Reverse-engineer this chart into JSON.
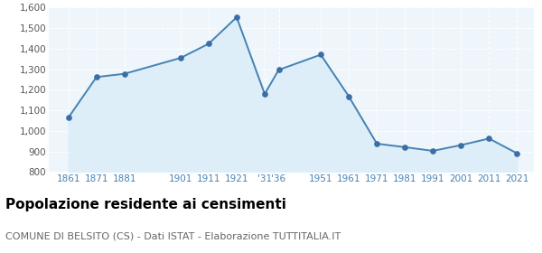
{
  "years": [
    1861,
    1871,
    1881,
    1901,
    1911,
    1921,
    1931,
    1936,
    1951,
    1961,
    1971,
    1981,
    1991,
    2001,
    2011,
    2021
  ],
  "values": [
    1065,
    1262,
    1278,
    1355,
    1424,
    1553,
    1180,
    1297,
    1371,
    1168,
    938,
    921,
    903,
    931,
    963,
    891
  ],
  "line_color": "#4682b4",
  "fill_color": "#ddeef8",
  "marker_color": "#3a6ea5",
  "ylim": [
    800,
    1600
  ],
  "yticks": [
    800,
    900,
    1000,
    1100,
    1200,
    1300,
    1400,
    1500,
    1600
  ],
  "xtick_positions": [
    1861,
    1871,
    1881,
    1901,
    1911,
    1921,
    1931,
    1936,
    1951,
    1961,
    1971,
    1981,
    1991,
    2001,
    2011,
    2021
  ],
  "xtick_labels": [
    "1861",
    "1871",
    "1881",
    "1901",
    "1911",
    "1921",
    "'31",
    "'36",
    "1951",
    "1961",
    "1971",
    "1981",
    "1991",
    "2001",
    "2011",
    "2021"
  ],
  "xlabel_color": "#4682b4",
  "ylabel_color": "#555555",
  "title": "Popolazione residente ai censimenti",
  "subtitle": "COMUNE DI BELSITO (CS) - Dati ISTAT - Elaborazione TUTTITALIA.IT",
  "title_fontsize": 11,
  "subtitle_fontsize": 8,
  "bg_color": "#eef5fb",
  "grid_color": "#ffffff",
  "xlim_left": 1854,
  "xlim_right": 2027
}
